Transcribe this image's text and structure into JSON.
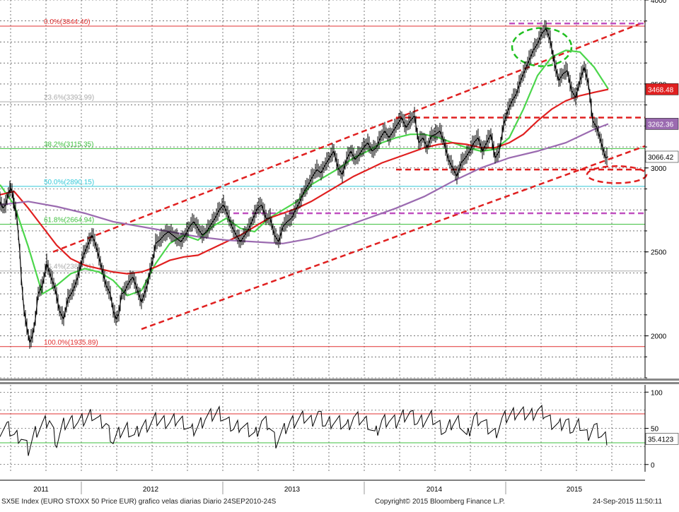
{
  "chart_data": [
    {
      "type": "line",
      "subtype": "candlestick-with-moving-averages",
      "title": "",
      "ylim": [
        1750,
        4000
      ],
      "y_ticks": [
        2000,
        2500,
        3000,
        3500,
        4000
      ],
      "y_tick_labels": [
        "2000",
        "2500",
        "3000",
        "3500",
        "4000"
      ],
      "x_labels": [
        "2011",
        "2012",
        "2013",
        "2014",
        "2015"
      ],
      "grid": true,
      "series": [
        {
          "kind": "price",
          "color": "#000000",
          "x": [
            0,
            4,
            8,
            12,
            15,
            17,
            20,
            24,
            28,
            30,
            34,
            38,
            42,
            46,
            50,
            54,
            60,
            66,
            72,
            78,
            84,
            90,
            96,
            102,
            106,
            110,
            114,
            118,
            122,
            126,
            130,
            134,
            138,
            144,
            150,
            156,
            160,
            164,
            168,
            172,
            176,
            180,
            184,
            188,
            192,
            196,
            200,
            204,
            208,
            212,
            216,
            220,
            226,
            232,
            238,
            244,
            250,
            256,
            262,
            268,
            274,
            280,
            286,
            292,
            298,
            304,
            310,
            316,
            322,
            328,
            334,
            340,
            346,
            352,
            358,
            364,
            370,
            376,
            382,
            388,
            394,
            400,
            406,
            412,
            418,
            424,
            430,
            436,
            442,
            448,
            454,
            460,
            466,
            472,
            478,
            484,
            490,
            496,
            502,
            508,
            514,
            520,
            526,
            532,
            538,
            544,
            550,
            556,
            562,
            568,
            574,
            580,
            586,
            592,
            598,
            604,
            610,
            616,
            622,
            628,
            634,
            640,
            646,
            652,
            658,
            664,
            670,
            676,
            682,
            688,
            694,
            700,
            706,
            712,
            718,
            724,
            730,
            736,
            742,
            748,
            754,
            760,
            766,
            772,
            778,
            784,
            790,
            796,
            802,
            808,
            814,
            820,
            826,
            832,
            838,
            844,
            850,
            856,
            860
          ],
          "values": [
            2800,
            2760,
            2780,
            2850,
            2880,
            2860,
            2780,
            2700,
            2500,
            2350,
            2150,
            2050,
            1960,
            2000,
            2100,
            2250,
            2300,
            2430,
            2350,
            2280,
            2150,
            2100,
            2220,
            2260,
            2300,
            2350,
            2420,
            2480,
            2520,
            2560,
            2600,
            2560,
            2500,
            2400,
            2300,
            2250,
            2150,
            2100,
            2130,
            2250,
            2260,
            2300,
            2330,
            2350,
            2300,
            2250,
            2200,
            2250,
            2300,
            2380,
            2450,
            2550,
            2570,
            2600,
            2620,
            2600,
            2580,
            2560,
            2600,
            2650,
            2680,
            2640,
            2600,
            2620,
            2660,
            2700,
            2750,
            2780,
            2720,
            2650,
            2600,
            2560,
            2600,
            2640,
            2700,
            2760,
            2780,
            2700,
            2700,
            2600,
            2560,
            2650,
            2680,
            2700,
            2750,
            2800,
            2860,
            2900,
            2950,
            2990,
            2970,
            3020,
            3060,
            3100,
            3000,
            2960,
            3050,
            3100,
            3050,
            3080,
            3120,
            3150,
            3100,
            3120,
            3180,
            3220,
            3180,
            3220,
            3260,
            3300,
            3240,
            3280,
            3310,
            3150,
            3180,
            3120,
            3190,
            3200,
            3220,
            3150,
            3050,
            3000,
            2950,
            3030,
            3060,
            3100,
            3150,
            3180,
            3100,
            3150,
            3200,
            3060,
            3100,
            3260,
            3340,
            3400,
            3440,
            3520,
            3580,
            3640,
            3700,
            3740,
            3800,
            3830,
            3760,
            3620,
            3520,
            3560,
            3580,
            3460,
            3420,
            3520,
            3600,
            3500,
            3280,
            3240,
            3150,
            3060,
            3066
          ]
        },
        {
          "kind": "moving-average",
          "name": "",
          "color": "#4cd64c",
          "x": [
            0,
            20,
            40,
            60,
            80,
            100,
            120,
            140,
            160,
            180,
            200,
            220,
            240,
            260,
            280,
            300,
            320,
            340,
            360,
            380,
            400,
            420,
            440,
            460,
            480,
            500,
            520,
            540,
            560,
            580,
            600,
            620,
            640,
            660,
            680,
            700,
            720,
            740,
            760,
            780,
            800,
            820,
            840,
            860
          ],
          "values": [
            2900,
            2780,
            2530,
            2250,
            2300,
            2370,
            2400,
            2380,
            2330,
            2240,
            2270,
            2430,
            2550,
            2600,
            2570,
            2650,
            2700,
            2640,
            2620,
            2700,
            2750,
            2800,
            2900,
            2950,
            3000,
            3060,
            3100,
            3150,
            3180,
            3200,
            3200,
            3180,
            3150,
            3120,
            3100,
            3110,
            3180,
            3350,
            3550,
            3660,
            3700,
            3690,
            3600,
            3470
          ]
        },
        {
          "kind": "moving-average",
          "name": "",
          "color": "#e02020",
          "x": [
            0,
            20,
            40,
            60,
            80,
            100,
            120,
            140,
            160,
            180,
            200,
            220,
            240,
            260,
            280,
            300,
            320,
            340,
            360,
            380,
            400,
            420,
            440,
            460,
            480,
            500,
            520,
            540,
            560,
            580,
            600,
            620,
            640,
            660,
            680,
            700,
            720,
            740,
            760,
            780,
            800,
            820,
            840,
            860
          ],
          "values": [
            2840,
            2860,
            2760,
            2650,
            2540,
            2460,
            2420,
            2400,
            2380,
            2370,
            2380,
            2410,
            2450,
            2470,
            2480,
            2520,
            2560,
            2600,
            2650,
            2700,
            2730,
            2760,
            2800,
            2850,
            2900,
            2950,
            2990,
            3030,
            3060,
            3090,
            3120,
            3140,
            3150,
            3140,
            3120,
            3120,
            3150,
            3200,
            3280,
            3350,
            3400,
            3430,
            3450,
            3468
          ]
        },
        {
          "kind": "moving-average",
          "name": "",
          "color": "#9b6bb0",
          "x": [
            0,
            40,
            80,
            120,
            160,
            200,
            240,
            280,
            320,
            360,
            400,
            440,
            480,
            520,
            560,
            600,
            640,
            680,
            720,
            760,
            800,
            840,
            860
          ],
          "values": [
            2780,
            2800,
            2770,
            2730,
            2680,
            2650,
            2620,
            2590,
            2570,
            2560,
            2550,
            2580,
            2640,
            2700,
            2760,
            2830,
            2920,
            3000,
            3060,
            3100,
            3150,
            3230,
            3262
          ]
        }
      ],
      "fibonacci_levels": [
        {
          "label": "0.0%(3844.40)",
          "value": 3844.4,
          "color": "#e03030"
        },
        {
          "label": "23.6%(3393.99)",
          "value": 3393.99,
          "color": "#aaaaaa"
        },
        {
          "label": "38.2%(3115.35)",
          "value": 3115.35,
          "color": "#40c040"
        },
        {
          "label": "50.0%(2890.15)",
          "value": 2890.15,
          "color": "#30c8d8"
        },
        {
          "label": "61.8%(2664.94)",
          "value": 2664.94,
          "color": "#40c040"
        },
        {
          "label": "76.4%(2386.31)",
          "value": 2386.31,
          "color": "#aaaaaa"
        },
        {
          "label": "100.0%(1935.89)",
          "value": 1935.89,
          "color": "#e03030"
        }
      ],
      "price_tags": [
        {
          "label": "3468.48",
          "value": 3468.48,
          "bg": "#e02020",
          "fg": "#ffffff"
        },
        {
          "label": "3262.36",
          "value": 3262.36,
          "bg": "#9b6bb0",
          "fg": "#ffffff"
        },
        {
          "label": "3066.42",
          "value": 3066.42,
          "bg": "#ffffff",
          "fg": "#000000"
        }
      ]
    },
    {
      "type": "line",
      "subtype": "oscillator",
      "ylim": [
        -10,
        110
      ],
      "y_ticks": [
        0,
        50,
        100
      ],
      "y_tick_labels": [
        "0",
        "50",
        "100"
      ],
      "reference_levels": [
        {
          "value": 70,
          "color": "#e03030"
        },
        {
          "value": 30,
          "color": "#40c040"
        }
      ],
      "series": [
        {
          "color": "#000000",
          "x": [
            0,
            10,
            20,
            30,
            40,
            50,
            60,
            70,
            80,
            90,
            100,
            110,
            120,
            130,
            140,
            150,
            160,
            170,
            180,
            190,
            200,
            210,
            220,
            230,
            240,
            250,
            260,
            270,
            280,
            290,
            300,
            310,
            320,
            330,
            340,
            350,
            360,
            370,
            380,
            390,
            400,
            410,
            420,
            430,
            440,
            450,
            460,
            470,
            480,
            490,
            500,
            510,
            520,
            530,
            540,
            550,
            560,
            570,
            580,
            590,
            600,
            610,
            620,
            630,
            640,
            650,
            660,
            670,
            680,
            690,
            700,
            710,
            720,
            730,
            740,
            750,
            760,
            770,
            780,
            790,
            800,
            810,
            820,
            830,
            840,
            850,
            860
          ],
          "values": [
            48,
            52,
            40,
            38,
            20,
            45,
            55,
            62,
            30,
            55,
            60,
            58,
            62,
            70,
            60,
            55,
            32,
            45,
            50,
            38,
            52,
            55,
            62,
            60,
            58,
            62,
            58,
            45,
            52,
            65,
            68,
            72,
            60,
            50,
            55,
            48,
            40,
            60,
            55,
            32,
            45,
            58,
            62,
            65,
            60,
            70,
            55,
            60,
            58,
            52,
            65,
            62,
            58,
            40,
            60,
            62,
            58,
            68,
            70,
            58,
            62,
            65,
            55,
            45,
            58,
            60,
            35,
            65,
            62,
            50,
            42,
            62,
            68,
            72,
            70,
            68,
            75,
            70,
            58,
            52,
            60,
            48,
            55,
            40,
            52,
            40,
            35
          ]
        }
      ],
      "value_tag": {
        "label": "35.4123",
        "value": 35.4123
      }
    }
  ],
  "footer": {
    "left": "SX5E Index (EURO STOXX 50 Price EUR) grafico velas diarias  Diario 24SEP2010-24S",
    "center": "Copyright© 2015 Bloomberg Finance L.P.",
    "right": "24-Sep-2015 11:50:11"
  }
}
